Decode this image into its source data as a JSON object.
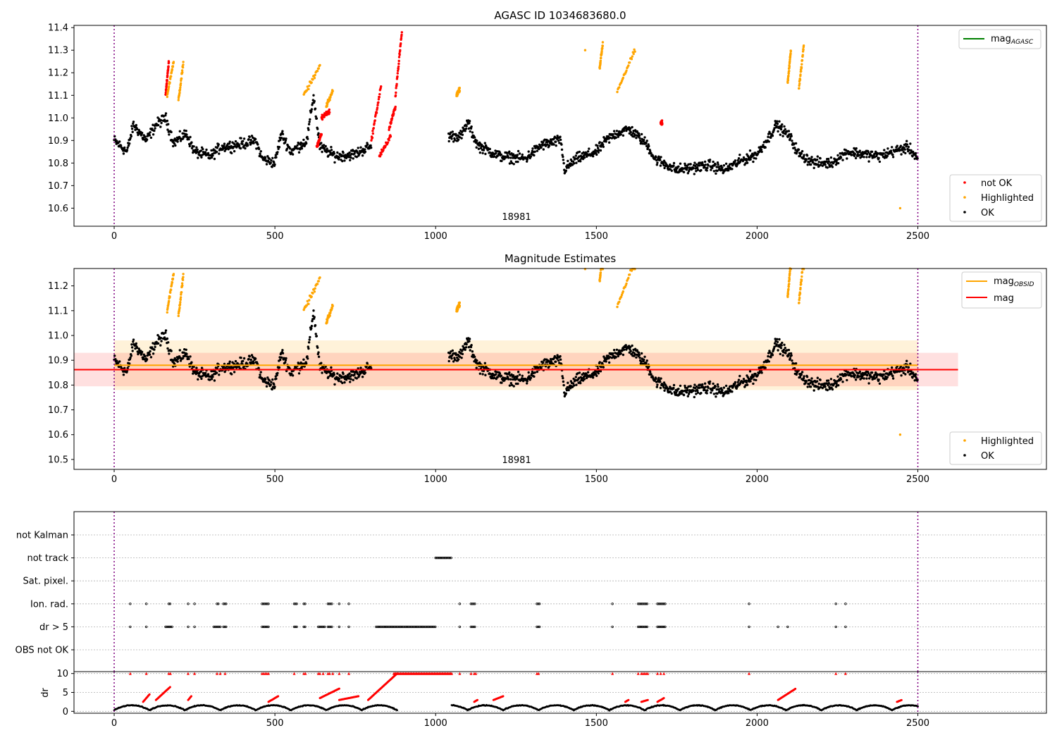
{
  "chart_data": [
    {
      "type": "scatter",
      "title": "AGASC ID 1034683680.0",
      "annotation": "18981",
      "xlim": [
        -125,
        2900
      ],
      "ylim": [
        10.52,
        11.41
      ],
      "x_ticks": [
        0,
        500,
        1000,
        1500,
        2000,
        2500
      ],
      "y_ticks": [
        10.6,
        10.7,
        10.8,
        10.9,
        11.0,
        11.1,
        11.2,
        11.3,
        11.4
      ],
      "y_tick_labels": [
        "10.6",
        "10.7",
        "10.8",
        "10.9",
        "11.0",
        "11.1",
        "11.2",
        "11.3",
        "11.4"
      ],
      "vlines": [
        0,
        2500
      ],
      "line_legend": {
        "main": "mag",
        "sub": "AGASC"
      },
      "legend": [
        {
          "name": "not OK",
          "color": "#ff0000"
        },
        {
          "name": "Highlighted",
          "color": "#ffa500"
        },
        {
          "name": "OK",
          "color": "#000000"
        }
      ],
      "trend": [
        [
          0,
          10.9
        ],
        [
          40,
          10.85
        ],
        [
          60,
          10.97
        ],
        [
          100,
          10.9
        ],
        [
          130,
          10.97
        ],
        [
          160,
          11.0
        ],
        [
          185,
          10.89
        ],
        [
          225,
          10.93
        ],
        [
          250,
          10.85
        ],
        [
          300,
          10.83
        ],
        [
          330,
          10.87
        ],
        [
          380,
          10.88
        ],
        [
          440,
          10.9
        ],
        [
          460,
          10.82
        ],
        [
          500,
          10.8
        ],
        [
          520,
          10.93
        ],
        [
          550,
          10.85
        ],
        [
          600,
          10.9
        ],
        [
          620,
          11.1
        ],
        [
          640,
          10.87
        ],
        [
          690,
          10.83
        ],
        [
          750,
          10.84
        ],
        [
          790,
          10.87
        ],
        [
          1050,
          10.92
        ],
        [
          1080,
          10.92
        ],
        [
          1100,
          10.98
        ],
        [
          1130,
          10.88
        ],
        [
          1200,
          10.83
        ],
        [
          1280,
          10.82
        ],
        [
          1330,
          10.88
        ],
        [
          1390,
          10.9
        ],
        [
          1400,
          10.77
        ],
        [
          1440,
          10.82
        ],
        [
          1480,
          10.84
        ],
        [
          1500,
          10.85
        ],
        [
          1530,
          10.9
        ],
        [
          1560,
          10.93
        ],
        [
          1600,
          10.95
        ],
        [
          1620,
          10.93
        ],
        [
          1660,
          10.88
        ],
        [
          1680,
          10.82
        ],
        [
          1750,
          10.77
        ],
        [
          1800,
          10.78
        ],
        [
          1850,
          10.79
        ],
        [
          1900,
          10.77
        ],
        [
          1950,
          10.81
        ],
        [
          2000,
          10.84
        ],
        [
          2030,
          10.9
        ],
        [
          2060,
          10.97
        ],
        [
          2100,
          10.92
        ],
        [
          2130,
          10.84
        ],
        [
          2180,
          10.8
        ],
        [
          2230,
          10.8
        ],
        [
          2280,
          10.85
        ],
        [
          2330,
          10.84
        ],
        [
          2380,
          10.83
        ],
        [
          2420,
          10.85
        ],
        [
          2470,
          10.87
        ],
        [
          2500,
          10.82
        ]
      ],
      "gaps": [
        [
          900,
          1040
        ]
      ],
      "series": [
        {
          "name": "not OK",
          "color": "#ff0000",
          "segments": [
            [
              160,
              170,
              11.1,
              11.25
            ],
            [
              630,
              645,
              10.87,
              10.93
            ],
            [
              825,
              860,
              10.83,
              10.92
            ],
            [
              800,
              830,
              10.9,
              11.14
            ],
            [
              855,
              875,
              10.95,
              11.05
            ],
            [
              875,
              895,
              11.1,
              11.38
            ],
            [
              645,
              670,
              11.0,
              11.03
            ],
            [
              1700,
              1705,
              10.98,
              10.98
            ]
          ]
        },
        {
          "name": "Highlighted",
          "color": "#ffa500",
          "segments": [
            [
              165,
              185,
              11.1,
              11.25
            ],
            [
              200,
              215,
              11.08,
              11.24
            ],
            [
              590,
              640,
              11.1,
              11.23
            ],
            [
              660,
              680,
              11.05,
              11.12
            ],
            [
              1065,
              1075,
              11.1,
              11.13
            ],
            [
              1510,
              1520,
              11.22,
              11.33
            ],
            [
              1565,
              1620,
              11.12,
              11.3
            ],
            [
              2095,
              2105,
              11.15,
              11.3
            ],
            [
              2130,
              2145,
              11.13,
              11.32
            ]
          ],
          "points": [
            [
              1465,
              11.3
            ],
            [
              2445,
              10.6
            ]
          ]
        }
      ]
    },
    {
      "type": "scatter",
      "title": "Magnitude Estimates",
      "annotation": "18981",
      "xlim": [
        -125,
        2900
      ],
      "ylim": [
        10.46,
        11.27
      ],
      "x_ticks": [
        0,
        500,
        1000,
        1500,
        2000,
        2500
      ],
      "y_ticks": [
        10.5,
        10.6,
        10.7,
        10.8,
        10.9,
        11.0,
        11.1,
        11.2
      ],
      "y_tick_labels": [
        "10.5",
        "10.6",
        "10.7",
        "10.8",
        "10.9",
        "11.0",
        "11.1",
        "11.2"
      ],
      "vlines": [
        0,
        2500
      ],
      "line_legend": [
        {
          "main": "mag",
          "sub": "OBSID",
          "color": "#ffa500"
        },
        {
          "main": "mag",
          "sub": "",
          "color": "#ff0000"
        }
      ],
      "legend": [
        {
          "name": "Highlighted",
          "color": "#ffa500"
        },
        {
          "name": "OK",
          "color": "#000000"
        }
      ],
      "hlines": [
        {
          "y": 10.88,
          "color": "#ffa500",
          "x0": 0,
          "x1": 2500,
          "band": [
            10.78,
            10.98
          ]
        },
        {
          "y": 10.862,
          "color": "#ff0000",
          "x0": -125,
          "x1": 2625,
          "band": [
            10.795,
            10.93
          ]
        }
      ]
    },
    {
      "type": "scatter",
      "title": "",
      "xlim": [
        -125,
        2900
      ],
      "x_ticks": [
        0,
        500,
        1000,
        1500,
        2000,
        2500
      ],
      "vlines": [
        0,
        2500
      ],
      "flag_rows": [
        "not Kalman",
        "not track",
        "Sat. pixel.",
        "Ion. rad.",
        "dr > 5",
        "OBS not OK"
      ],
      "flags": {
        "not track": [
          [
            1000,
            1050
          ]
        ],
        "Ion. rad.": [
          [
            50,
            50
          ],
          [
            100,
            100
          ],
          [
            170,
            175
          ],
          [
            230,
            230
          ],
          [
            250,
            250
          ],
          [
            320,
            325
          ],
          [
            340,
            350
          ],
          [
            460,
            480
          ],
          [
            560,
            570
          ],
          [
            590,
            595
          ],
          [
            665,
            680
          ],
          [
            700,
            700
          ],
          [
            730,
            730
          ],
          [
            1075,
            1075
          ],
          [
            1110,
            1125
          ],
          [
            1315,
            1325
          ],
          [
            1550,
            1550
          ],
          [
            1630,
            1660
          ],
          [
            1690,
            1715
          ],
          [
            1975,
            1975
          ],
          [
            2245,
            2245
          ],
          [
            2275,
            2275
          ]
        ],
        "dr > 5": [
          [
            50,
            50
          ],
          [
            100,
            100
          ],
          [
            160,
            180
          ],
          [
            230,
            230
          ],
          [
            250,
            250
          ],
          [
            310,
            330
          ],
          [
            340,
            350
          ],
          [
            460,
            480
          ],
          [
            560,
            570
          ],
          [
            590,
            595
          ],
          [
            635,
            655
          ],
          [
            665,
            680
          ],
          [
            700,
            700
          ],
          [
            730,
            730
          ],
          [
            815,
            1000
          ],
          [
            1075,
            1075
          ],
          [
            1110,
            1125
          ],
          [
            1315,
            1325
          ],
          [
            1550,
            1550
          ],
          [
            1630,
            1660
          ],
          [
            1690,
            1715
          ],
          [
            1975,
            1975
          ],
          [
            2065,
            2065
          ],
          [
            2095,
            2095
          ],
          [
            2245,
            2245
          ],
          [
            2275,
            2275
          ]
        ]
      }
    },
    {
      "type": "scatter",
      "title": "",
      "ylabel": "dr",
      "xlim": [
        -125,
        2900
      ],
      "ylim": [
        -0.5,
        10.5
      ],
      "x_ticks": [
        0,
        500,
        1000,
        1500,
        2000,
        2500
      ],
      "x_tick_labels": [
        "0",
        "500",
        "1000",
        "1500",
        "2000",
        "2500"
      ],
      "y_ticks": [
        0,
        5,
        10
      ],
      "y_tick_labels": [
        "0",
        "5",
        "10"
      ],
      "vlines": [
        0,
        2500
      ],
      "red_segments": [
        [
          90,
          110,
          2.5,
          4.5
        ],
        [
          130,
          175,
          3,
          6.5
        ],
        [
          230,
          240,
          3,
          4
        ],
        [
          480,
          510,
          2.5,
          4
        ],
        [
          640,
          700,
          3.5,
          6
        ],
        [
          700,
          760,
          3,
          4
        ],
        [
          790,
          880,
          3,
          10
        ],
        [
          1120,
          1130,
          2.5,
          3
        ],
        [
          1180,
          1210,
          3,
          4
        ],
        [
          1590,
          1600,
          2.5,
          3
        ],
        [
          1640,
          1660,
          2.5,
          3
        ],
        [
          1690,
          1710,
          2.5,
          3.5
        ],
        [
          2065,
          2120,
          3,
          6
        ],
        [
          2435,
          2450,
          2.5,
          3
        ]
      ],
      "capped_10": [
        [
          870,
          1050
        ]
      ],
      "triangle_markers": [
        50,
        100,
        170,
        175,
        230,
        250,
        320,
        330,
        345,
        460,
        465,
        470,
        475,
        480,
        560,
        590,
        595,
        635,
        640,
        650,
        665,
        670,
        680,
        700,
        730,
        1075,
        1110,
        1120,
        1125,
        1315,
        1320,
        1550,
        1630,
        1640,
        1645,
        1650,
        1655,
        1660,
        1690,
        1700,
        1710,
        1975,
        2245,
        2275
      ]
    }
  ]
}
